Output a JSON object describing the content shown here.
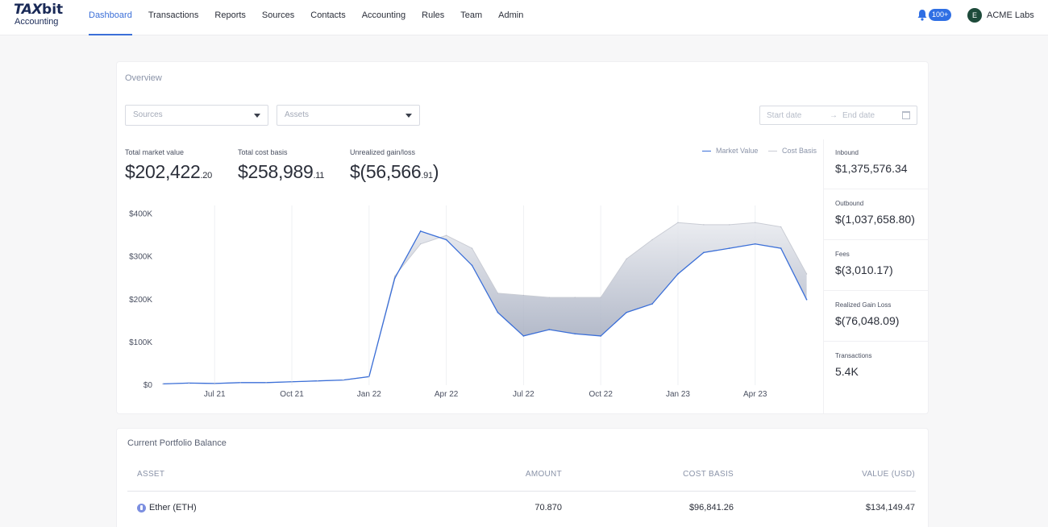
{
  "app": {
    "logo_primary": "TAX",
    "logo_bit": "bit",
    "logo_secondary": "Accounting"
  },
  "nav": {
    "items": [
      "Dashboard",
      "Transactions",
      "Reports",
      "Sources",
      "Contacts",
      "Accounting",
      "Rules",
      "Team",
      "Admin"
    ],
    "active": "Dashboard"
  },
  "header": {
    "notification_count": "100+",
    "org_initial": "E",
    "org_name": "ACME Labs"
  },
  "overview": {
    "title": "Overview",
    "sources_placeholder": "Sources",
    "assets_placeholder": "Assets",
    "start_date_placeholder": "Start date",
    "end_date_placeholder": "End date",
    "stats": [
      {
        "label": "Total market value",
        "value": "$202,422",
        "cents": ".20"
      },
      {
        "label": "Total cost basis",
        "value": "$258,989",
        "cents": ".11"
      },
      {
        "label": "Unrealized gain/loss",
        "value": "$(56,566",
        "cents": ".91",
        "suffix": ")"
      }
    ],
    "legend": [
      {
        "name": "Market Value",
        "color": "#3b6fd8"
      },
      {
        "name": "Cost Basis",
        "color": "#c9ccd4"
      }
    ],
    "side_stats": [
      {
        "label": "Inbound",
        "value": "$1,375,576.34"
      },
      {
        "label": "Outbound",
        "value": "$(1,037,658.80)"
      },
      {
        "label": "Fees",
        "value": "$(3,010.17)"
      },
      {
        "label": "Realized Gain Loss",
        "value": "$(76,048.09)"
      },
      {
        "label": "Transactions",
        "value": "5.4K"
      }
    ]
  },
  "chart_data": {
    "type": "line",
    "title": "",
    "xlabel": "",
    "ylabel": "",
    "ylim": [
      0,
      420000
    ],
    "yticks": [
      0,
      100000,
      200000,
      300000,
      400000
    ],
    "ytick_labels": [
      "$0",
      "$100K",
      "$200K",
      "$300K",
      "$400K"
    ],
    "xticks": [
      "Jul 21",
      "Oct 21",
      "Jan 22",
      "Apr 22",
      "Jul 22",
      "Oct 22",
      "Jan 23",
      "Apr 23"
    ],
    "grid": "vertical",
    "legend_position": "top-right",
    "x": [
      "2021-05",
      "2021-06",
      "2021-07",
      "2021-08",
      "2021-09",
      "2021-10",
      "2021-11",
      "2021-12",
      "2022-01",
      "2022-02",
      "2022-03",
      "2022-04",
      "2022-05",
      "2022-06",
      "2022-07",
      "2022-08",
      "2022-09",
      "2022-10",
      "2022-11",
      "2022-12",
      "2023-01",
      "2023-02",
      "2023-03",
      "2023-04",
      "2023-05",
      "2023-06"
    ],
    "series": [
      {
        "name": "Market Value",
        "color": "#3b6fd8",
        "values": [
          3000,
          5000,
          4000,
          6000,
          6000,
          8000,
          10000,
          12000,
          20000,
          250000,
          360000,
          340000,
          280000,
          170000,
          115000,
          130000,
          120000,
          115000,
          170000,
          190000,
          260000,
          310000,
          320000,
          330000,
          320000,
          200000
        ]
      },
      {
        "name": "Cost Basis",
        "color": "#c9ccd4",
        "values": [
          3000,
          5000,
          4000,
          6000,
          6000,
          8000,
          10000,
          12000,
          20000,
          255000,
          330000,
          350000,
          320000,
          215000,
          210000,
          205000,
          205000,
          205000,
          295000,
          340000,
          380000,
          375000,
          375000,
          380000,
          370000,
          260000
        ]
      }
    ]
  },
  "portfolio": {
    "title": "Current Portfolio Balance",
    "columns": [
      "ASSET",
      "AMOUNT",
      "COST BASIS",
      "VALUE (USD)"
    ],
    "rows": [
      {
        "asset": "Ether (ETH)",
        "amount": "70.870",
        "cost_basis": "$96,841.26",
        "value": "$134,149.47"
      }
    ]
  }
}
